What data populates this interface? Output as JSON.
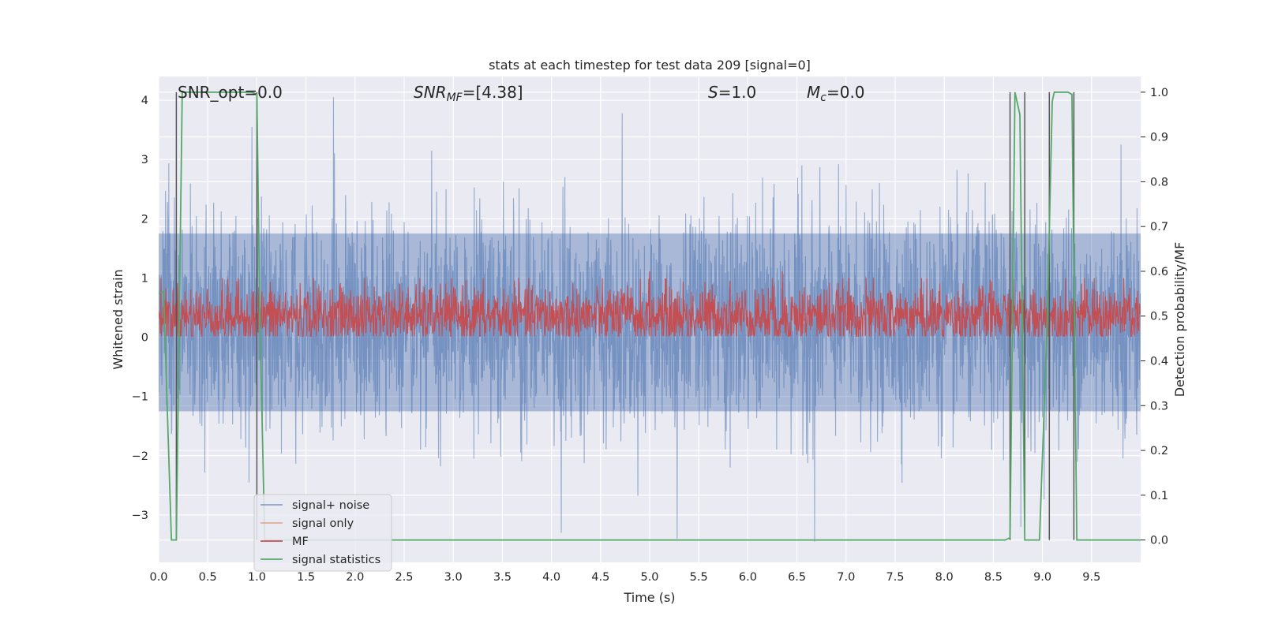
{
  "chart_data": {
    "type": "line",
    "title": "stats at each timestep for test data 209 [signal=0]",
    "xlabel": "Time (s)",
    "ylabel": "Whitened strain",
    "ylabel_right": "Detection probability/MF",
    "xlim": [
      0.0,
      10.0
    ],
    "ylim_left": [
      -3.8,
      4.4
    ],
    "ylim_right": [
      -0.05,
      1.035
    ],
    "x_ticks": [
      0.0,
      0.5,
      1.0,
      1.5,
      2.0,
      2.5,
      3.0,
      3.5,
      4.0,
      4.5,
      5.0,
      5.5,
      6.0,
      6.5,
      7.0,
      7.5,
      8.0,
      8.5,
      9.0,
      9.5
    ],
    "x_tick_labels": [
      "0.0",
      "0.5",
      "1.0",
      "1.5",
      "2.0",
      "2.5",
      "3.0",
      "3.5",
      "4.0",
      "4.5",
      "5.0",
      "5.5",
      "6.0",
      "6.5",
      "7.0",
      "7.5",
      "8.0",
      "8.5",
      "9.0",
      "9.5"
    ],
    "y_left_ticks": [
      -3,
      -2,
      -1,
      0,
      1,
      2,
      3,
      4
    ],
    "y_left_tick_labels": [
      "−3",
      "−2",
      "−1",
      "0",
      "1",
      "2",
      "3",
      "4"
    ],
    "y_right_ticks": [
      0.0,
      0.1,
      0.2,
      0.3,
      0.4,
      0.5,
      0.6,
      0.7,
      0.8,
      0.9,
      1.0
    ],
    "y_right_tick_labels": [
      "0.0",
      "0.1",
      "0.2",
      "0.3",
      "0.4",
      "0.5",
      "0.6",
      "0.7",
      "0.8",
      "0.9",
      "1.0"
    ],
    "grid": true,
    "legend_position": "lower-left",
    "annotations": {
      "snr_opt": "SNR_opt=0.0",
      "snr_mf_symbol": "SNR",
      "snr_mf_sub": "MF",
      "snr_mf_value": "=[4.38]",
      "s_symbol": "S",
      "s_value": "=1.0",
      "mc_symbol": "M",
      "mc_sub": "c",
      "mc_value": "=0.0"
    },
    "series": [
      {
        "name": "signal+ noise",
        "color": "#4c72b0",
        "axis": "left",
        "kind": "noise",
        "typical_range": [
          -1.25,
          1.75
        ],
        "peaks": [
          [
            0.95,
            3.55
          ],
          [
            1.78,
            4.05
          ],
          [
            2.78,
            3.15
          ],
          [
            4.72,
            3.78
          ],
          [
            6.55,
            2.9
          ],
          [
            9.8,
            3.25
          ]
        ],
        "troughs": [
          [
            4.1,
            -3.3
          ],
          [
            5.28,
            -3.4
          ],
          [
            6.68,
            -3.5
          ],
          [
            8.78,
            -3.2
          ]
        ]
      },
      {
        "name": "signal only",
        "color": "#dd8452",
        "axis": "left",
        "values": []
      },
      {
        "name": "MF",
        "color": "#c44e52",
        "axis": "right",
        "kind": "noise",
        "typical_range": [
          0.47,
          0.57
        ],
        "peaks": [
          [
            5.0,
            0.6
          ],
          [
            6.35,
            0.6
          ]
        ]
      },
      {
        "name": "signal statistics",
        "color": "#55a868",
        "axis": "right",
        "x": [
          0.0,
          0.05,
          0.13,
          0.18,
          0.24,
          0.28,
          0.95,
          1.0,
          1.03,
          1.08,
          1.2,
          8.62,
          8.67,
          8.72,
          8.77,
          8.82,
          8.87,
          8.92,
          8.97,
          9.05,
          9.1,
          9.12,
          9.2,
          9.26,
          9.3,
          9.35,
          10.0
        ],
        "values": [
          0.55,
          0.555,
          0.0,
          0.0,
          1.0,
          1.0,
          1.0,
          0.995,
          0.5,
          0.0,
          0.0,
          0.0,
          0.005,
          1.0,
          0.95,
          0.0,
          0.0,
          0.0,
          0.0,
          0.5,
          0.98,
          1.0,
          1.0,
          1.0,
          0.995,
          0.0,
          0.0
        ]
      }
    ],
    "vertical_lines": [
      0.18,
      1.0,
      8.67,
      8.82,
      9.07,
      9.32
    ]
  }
}
